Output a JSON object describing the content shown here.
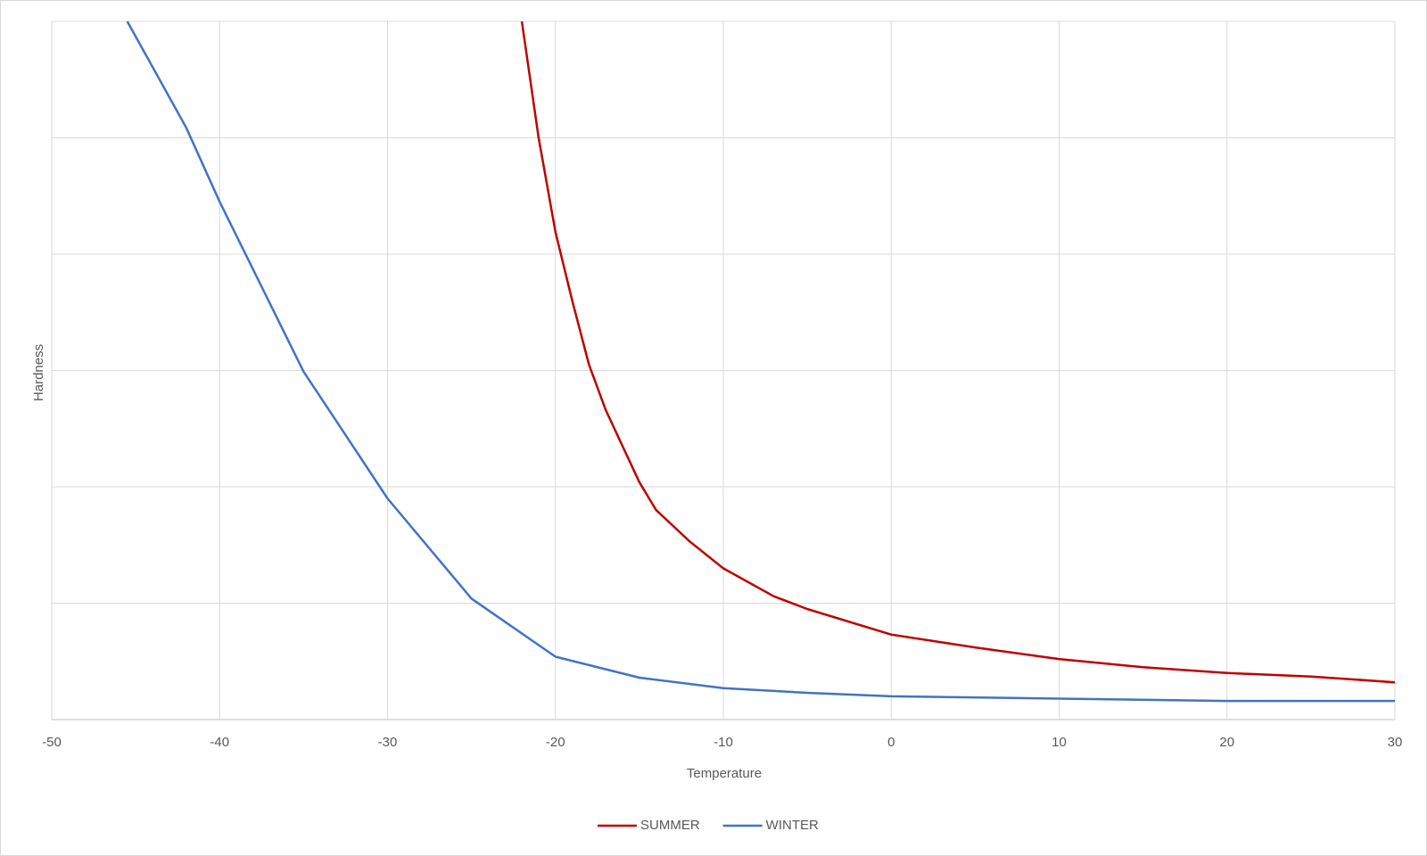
{
  "chart_data": {
    "type": "line",
    "x_label": "Temperature",
    "y_label": "Hardness",
    "xlim": [
      -50,
      30
    ],
    "xticks": [
      -50,
      -40,
      -30,
      -20,
      -10,
      0,
      10,
      20,
      30
    ],
    "ylim": [
      0,
      6
    ],
    "yticks": [
      0,
      1,
      2,
      3,
      4,
      5,
      6
    ],
    "ytick_labels_shown": false,
    "grid": true,
    "legend": "bottom",
    "series": [
      {
        "name": "SUMMER",
        "color": "#c00000",
        "x": [
          -22,
          -21,
          -20,
          -19,
          -18,
          -17,
          -16,
          -15,
          -14,
          -12,
          -10,
          -7,
          -5,
          0,
          5,
          10,
          15,
          20,
          25,
          30
        ],
        "values": [
          6.0,
          5.0,
          4.19,
          3.6,
          3.05,
          2.66,
          2.35,
          2.04,
          1.8,
          1.53,
          1.3,
          1.06,
          0.95,
          0.73,
          0.62,
          0.52,
          0.45,
          0.4,
          0.37,
          0.32
        ]
      },
      {
        "name": "WINTER",
        "color": "#4472c4",
        "x": [
          -45.5,
          -42,
          -40,
          -35,
          -30,
          -25,
          -20,
          -15,
          -10,
          -5,
          0,
          10,
          20,
          30
        ],
        "values": [
          6.0,
          5.09,
          4.45,
          2.99,
          1.9,
          1.04,
          0.54,
          0.36,
          0.27,
          0.23,
          0.2,
          0.18,
          0.16,
          0.16
        ]
      }
    ]
  }
}
